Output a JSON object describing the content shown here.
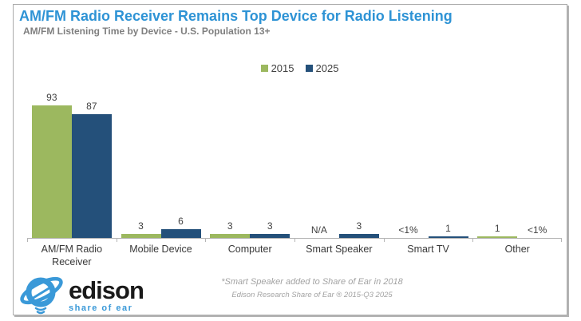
{
  "chart_data": {
    "type": "bar",
    "title": "AM/FM Radio Receiver Remains Top Device for Radio Listening",
    "subtitle": "AM/FM Listening Time by Device - U.S. Population 13+",
    "categories": [
      "AM/FM Radio Receiver",
      "Mobile Device",
      "Computer",
      "Smart Speaker",
      "Smart TV",
      "Other"
    ],
    "series": [
      {
        "name": "2015",
        "color": "#9CB85F",
        "values": [
          93,
          3,
          3,
          null,
          0.5,
          1
        ],
        "display": [
          "93",
          "3",
          "3",
          "N/A",
          "<1%",
          "1"
        ]
      },
      {
        "name": "2025",
        "color": "#24507A",
        "values": [
          87,
          6,
          3,
          3,
          1,
          0.5
        ],
        "display": [
          "87",
          "6",
          "3",
          "3",
          "1",
          "<1%"
        ]
      }
    ],
    "ylim": [
      0,
      100
    ],
    "grid": false,
    "legend_position": "top-center",
    "xlabel": "",
    "ylabel": "",
    "annotations": [
      "*Smart Speaker added to Share of Ear in 2018",
      "Edison Research Share of Ear ® 2015-Q3 2025"
    ]
  },
  "header": {
    "title_color": "#2E93D5",
    "subtitle_color": "#7F7F7F"
  },
  "logo": {
    "icon": "edison-planet-logo",
    "brand": "edison",
    "tagline": "share of ear",
    "brand_color": "#1A1A1A",
    "accent_color": "#3A99D8"
  }
}
